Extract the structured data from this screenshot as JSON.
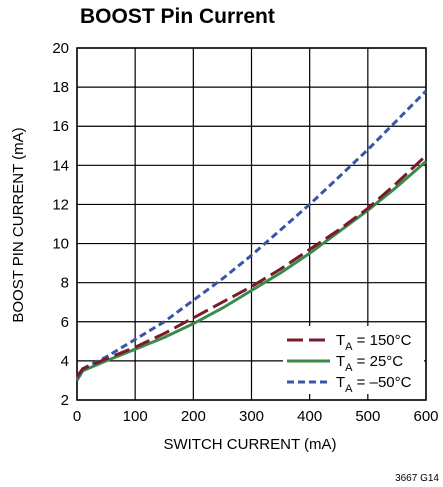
{
  "chart_data": {
    "type": "line",
    "title": "BOOST Pin Current",
    "xlabel": "SWITCH CURRENT (mA)",
    "ylabel": "BOOST PIN CURRENT (mA)",
    "xlim": [
      0,
      600
    ],
    "ylim": [
      2,
      20
    ],
    "xticks": [
      "0",
      "100",
      "200",
      "300",
      "400",
      "500",
      "600"
    ],
    "yticks": [
      "2",
      "4",
      "6",
      "8",
      "10",
      "12",
      "14",
      "16",
      "18",
      "20"
    ],
    "grid": true,
    "legend_position": "bottom-right",
    "series": [
      {
        "name": "T_A = 150°C",
        "label_main": "T",
        "label_sub": "A",
        "label_rest": " = 150°C",
        "color": "#7b1a2a",
        "dash": "long-dash",
        "x": [
          0,
          10,
          50,
          100,
          150,
          200,
          250,
          300,
          350,
          400,
          450,
          500,
          550,
          600
        ],
        "y": [
          3.2,
          3.6,
          4.1,
          4.7,
          5.4,
          6.2,
          7.0,
          7.8,
          8.7,
          9.7,
          10.7,
          11.8,
          13.1,
          14.5
        ]
      },
      {
        "name": "T_A = 25°C",
        "label_main": "T",
        "label_sub": "A",
        "label_rest": " = 25°C",
        "color": "#3a8a4a",
        "dash": "solid",
        "x": [
          0,
          10,
          50,
          100,
          150,
          200,
          250,
          300,
          350,
          400,
          450,
          500,
          550,
          600
        ],
        "y": [
          3.0,
          3.5,
          4.0,
          4.6,
          5.2,
          5.9,
          6.7,
          7.6,
          8.5,
          9.5,
          10.6,
          11.7,
          12.9,
          14.2
        ]
      },
      {
        "name": "T_A = -50°C",
        "label_main": "T",
        "label_sub": "A",
        "label_rest": " = –50°C",
        "color": "#3a55a5",
        "dash": "short-dash",
        "x": [
          0,
          10,
          50,
          100,
          150,
          200,
          250,
          300,
          350,
          400,
          450,
          500,
          550,
          600
        ],
        "y": [
          3.1,
          3.6,
          4.2,
          5.1,
          6.0,
          7.1,
          8.2,
          9.4,
          10.7,
          12.0,
          13.4,
          14.8,
          16.3,
          17.8
        ]
      }
    ]
  },
  "footnote": "3667 G14"
}
